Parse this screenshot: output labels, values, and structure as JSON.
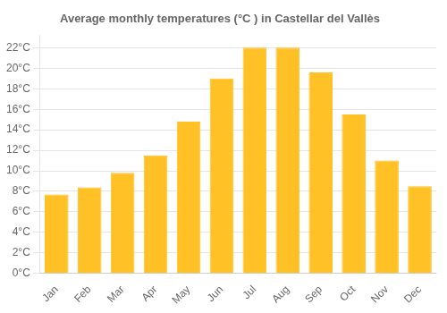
{
  "chart_data": {
    "type": "bar",
    "title": "Average monthly temperatures (°C ) in Castellar del Vallès",
    "categories": [
      "Jan",
      "Feb",
      "Mar",
      "Apr",
      "May",
      "Jun",
      "Jul",
      "Aug",
      "Sep",
      "Oct",
      "Nov",
      "Dec"
    ],
    "values": [
      7.7,
      8.4,
      9.8,
      11.5,
      14.8,
      19.0,
      22.0,
      22.0,
      19.6,
      15.5,
      11.0,
      8.5
    ],
    "color": "#FFC125",
    "ylim": [
      0,
      23.2
    ],
    "yticks": [
      {
        "value": 0,
        "label": "0°C"
      },
      {
        "value": 2,
        "label": "2°C"
      },
      {
        "value": 4,
        "label": "4°C"
      },
      {
        "value": 6,
        "label": "6°C"
      },
      {
        "value": 8,
        "label": "8°C"
      },
      {
        "value": 10,
        "label": "10°C"
      },
      {
        "value": 12,
        "label": "12°C"
      },
      {
        "value": 14,
        "label": "14°C"
      },
      {
        "value": 16,
        "label": "16°C"
      },
      {
        "value": 18,
        "label": "18°C"
      },
      {
        "value": 20,
        "label": "20°C"
      },
      {
        "value": 22,
        "label": "22°C"
      }
    ],
    "grid": true
  }
}
